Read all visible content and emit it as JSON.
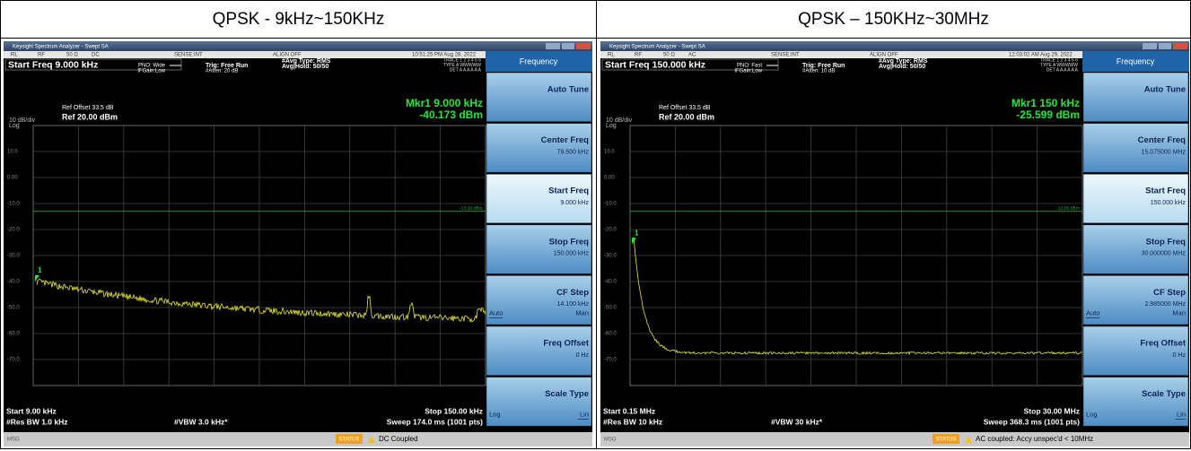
{
  "header": [
    "QPSK - 9kHz~150KHz",
    "QPSK – 150KHz~30MHz"
  ],
  "panels": [
    {
      "window_title": "Keysight Spectrum Analyzer - Swept SA",
      "top_bar": [
        "RL",
        "RF",
        "50 Ω",
        "DC",
        "SENSE:INT",
        "ALIGN OFF"
      ],
      "time": "10:51:25 PM Aug 28, 2022",
      "start_freq": "Start Freq 9.000 kHz",
      "pno": "PNO: Wide",
      "ifgain": "IFGain:Low",
      "trig": "Trig: Free Run",
      "atten": "#Atten: 20 dB",
      "avg_type": "#Avg Type: RMS",
      "avg_hold": "Avg|Hold: 50/50",
      "trace_rows": [
        "TRACE 1 2 3 4 5 6",
        "TYPE A WWWWW",
        "DET A A A A A A"
      ],
      "ref_offset": "Ref Offset 33.5 dB",
      "scale": "10 dB/div",
      "log": "Log",
      "ref": "Ref 20.00 dBm",
      "marker_freq": "Mkr1 9.000 kHz",
      "marker_amp": "-40.173 dBm",
      "marker_num": "1",
      "y_labels": [
        "10.0",
        "0.00",
        "-10.0",
        "-20.0",
        "-30.0",
        "-40.0",
        "-50.0",
        "-60.0",
        "-70.0"
      ],
      "limit_label": "-13.00 dBm",
      "start": "Start 9.00 kHz",
      "rbw": "#Res BW 1.0 kHz",
      "vbw": "#VBW 3.0 kHz*",
      "stop": "Stop 150.00 kHz",
      "sweep": "Sweep 174.0 ms (1001 pts)",
      "msg": "MSG",
      "status": "STATUS",
      "status_msg": "DC Coupled",
      "menu_title": "Frequency",
      "softkeys": [
        {
          "label": "Auto Tune"
        },
        {
          "label": "Center Freq",
          "value": "79.500 kHz"
        },
        {
          "label": "Start Freq",
          "value": "9.000 kHz"
        },
        {
          "label": "Stop Freq",
          "value": "150.000 kHz"
        },
        {
          "label": "CF Step",
          "value": "14.100 kHz",
          "left": "Auto",
          "right": "Man"
        },
        {
          "label": "Freq Offset",
          "value": "0 Hz"
        },
        {
          "label": "Scale Type",
          "left": "Log",
          "right": "Lin"
        }
      ]
    },
    {
      "window_title": "Keysight Spectrum Analyzer - Swept SA",
      "top_bar": [
        "RL",
        "RF",
        "50 Ω",
        "AC",
        "SENSE:INT",
        "ALIGN OFF"
      ],
      "time": "12:03:02 AM Aug 29, 2022",
      "start_freq": "Start Freq 150.000 kHz",
      "pno": "PNO: Fast",
      "ifgain": "IFGain:Low",
      "trig": "Trig: Free Run",
      "atten": "#Atten: 10 dB",
      "avg_type": "#Avg Type: RMS",
      "avg_hold": "Avg|Hold: 50/50",
      "trace_rows": [
        "TRACE 1 2 3 4 5 6",
        "TYPE A WWWWW",
        "DET A A A A A A"
      ],
      "ref_offset": "Ref Offset 33.5 dB",
      "scale": "10 dB/div",
      "log": "Log",
      "ref": "Ref 20.00 dBm",
      "marker_freq": "Mkr1 150 kHz",
      "marker_amp": "-25.599 dBm",
      "marker_num": "1",
      "y_labels": [
        "10.0",
        "0.00",
        "-10.0",
        "-20.0",
        "-30.0",
        "-40.0",
        "-50.0",
        "-60.0",
        "-70.0"
      ],
      "limit_label": "-13.00 dBm",
      "start": "Start 0.15 MHz",
      "rbw": "#Res BW 10 kHz",
      "vbw": "#VBW 30 kHz*",
      "stop": "Stop 30.00 MHz",
      "sweep": "Sweep 368.3 ms (1001 pts)",
      "msg": "MSG",
      "status": "STATUS",
      "status_msg": "AC coupled: Accy unspec'd < 10MHz",
      "menu_title": "Frequency",
      "softkeys": [
        {
          "label": "Auto Tune"
        },
        {
          "label": "Center Freq",
          "value": "15.075000 MHz"
        },
        {
          "label": "Start Freq",
          "value": "150.000 kHz"
        },
        {
          "label": "Stop Freq",
          "value": "30.000000 MHz"
        },
        {
          "label": "CF Step",
          "value": "2.985000 MHz",
          "left": "Auto",
          "right": "Man"
        },
        {
          "label": "Freq Offset",
          "value": "0 Hz"
        },
        {
          "label": "Scale Type",
          "left": "Log",
          "right": "Lin"
        }
      ]
    }
  ]
}
